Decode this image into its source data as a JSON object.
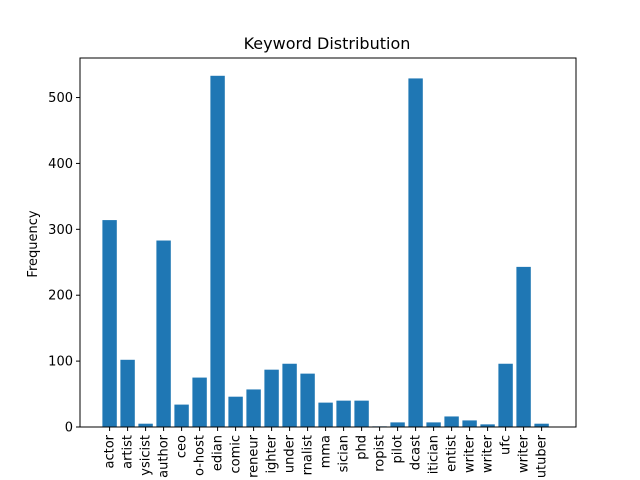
{
  "chart_data": {
    "type": "bar",
    "title": "Keyword Distribution",
    "xlabel": "",
    "ylabel": "Frequency",
    "ylim": [
      0,
      560
    ],
    "yticks": [
      0,
      100,
      200,
      300,
      400,
      500
    ],
    "grid": false,
    "bar_color": "#1f77b4",
    "categories": [
      "actor",
      "artist",
      "ysicist",
      "author",
      "ceo",
      "o-host",
      "edian",
      "comic",
      "reneur",
      "ighter",
      "under",
      "rnalist",
      "mma",
      "sician",
      "phd",
      "ropist",
      "pilot",
      "dcast",
      "itician",
      "entist",
      "writer",
      "writer",
      "ufc",
      "writer",
      "utuber"
    ],
    "values": [
      314,
      102,
      5,
      283,
      34,
      75,
      533,
      46,
      57,
      87,
      96,
      81,
      37,
      40,
      40,
      1,
      7,
      529,
      7,
      16,
      10,
      4,
      96,
      243,
      5
    ]
  }
}
